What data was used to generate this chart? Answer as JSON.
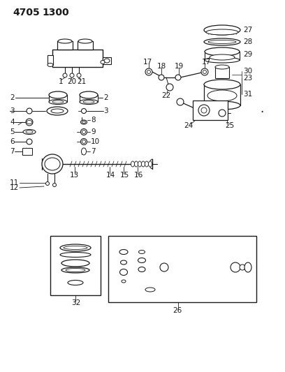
{
  "title_part1": "4705",
  "title_part2": "1300",
  "bg_color": "#ffffff",
  "line_color": "#1a1a1a",
  "fig_width": 4.08,
  "fig_height": 5.33,
  "dpi": 100,
  "label_fontsize": 7.5,
  "title_fontsize": 10
}
